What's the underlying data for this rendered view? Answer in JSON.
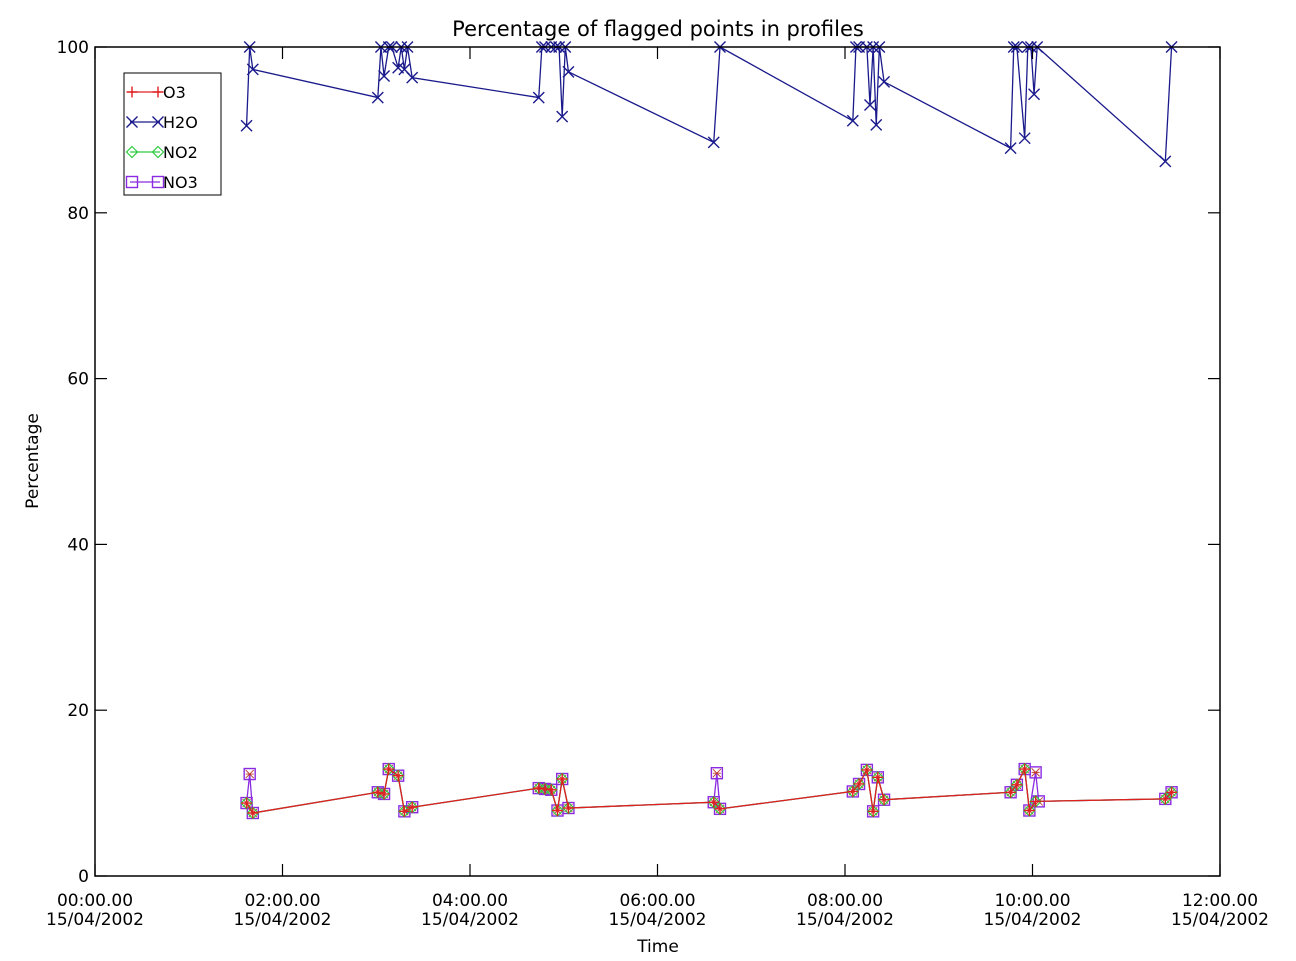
{
  "chart_data": {
    "type": "line",
    "title": "Percentage of flagged points in profiles",
    "xlabel": "Time",
    "ylabel": "Percentage",
    "ylim": [
      0,
      100
    ],
    "xlim": [
      "2002-04-15 00:00",
      "2002-04-15 12:00"
    ],
    "xticks": [
      {
        "time": "00:00.00",
        "date": "15/04/2002"
      },
      {
        "time": "02:00.00",
        "date": "15/04/2002"
      },
      {
        "time": "04:00.00",
        "date": "15/04/2002"
      },
      {
        "time": "06:00.00",
        "date": "15/04/2002"
      },
      {
        "time": "08:00.00",
        "date": "15/04/2002"
      },
      {
        "time": "10:00.00",
        "date": "15/04/2002"
      },
      {
        "time": "12:00.00",
        "date": "15/04/2002"
      }
    ],
    "yticks": [
      "0",
      "20",
      "40",
      "60",
      "80",
      "100"
    ],
    "ytick_values": [
      0,
      20,
      40,
      60,
      80,
      100
    ],
    "legend_position": "top-left",
    "grid": false,
    "series": [
      {
        "name": "O3",
        "color": "#e02020",
        "marker": "plus",
        "x": [
          "2002-04-15 01:37",
          "2002-04-15 01:41",
          "2002-04-15 03:01",
          "2002-04-15 03:05",
          "2002-04-15 03:08",
          "2002-04-15 03:14",
          "2002-04-15 03:18",
          "2002-04-15 03:23",
          "2002-04-15 04:44",
          "2002-04-15 04:48",
          "2002-04-15 04:52",
          "2002-04-15 04:56",
          "2002-04-15 04:59",
          "2002-04-15 05:03",
          "2002-04-15 06:36",
          "2002-04-15 06:40",
          "2002-04-15 08:05",
          "2002-04-15 08:09",
          "2002-04-15 08:14",
          "2002-04-15 08:18",
          "2002-04-15 08:21",
          "2002-04-15 08:25",
          "2002-04-15 09:46",
          "2002-04-15 09:50",
          "2002-04-15 09:55",
          "2002-04-15 09:58",
          "2002-04-15 10:02",
          "2002-04-15 11:25",
          "2002-04-15 11:29"
        ],
        "values": [
          8.8,
          7.6,
          10.1,
          9.9,
          12.9,
          12.1,
          7.8,
          8.3,
          10.6,
          10.5,
          10.4,
          7.9,
          11.7,
          8.2,
          8.9,
          8.1,
          10.2,
          11.1,
          12.8,
          7.8,
          11.9,
          9.2,
          10.1,
          11.0,
          12.9,
          7.9,
          9.0,
          9.3,
          10.1
        ]
      },
      {
        "name": "H2O",
        "color": "#1a1a8c",
        "marker": "cross",
        "x": [
          "2002-04-15 01:37",
          "2002-04-15 01:39",
          "2002-04-15 01:41",
          "2002-04-15 03:01",
          "2002-04-15 03:03",
          "2002-04-15 03:05",
          "2002-04-15 03:08",
          "2002-04-15 03:10",
          "2002-04-15 03:14",
          "2002-04-15 03:16",
          "2002-04-15 03:18",
          "2002-04-15 03:20",
          "2002-04-15 03:23",
          "2002-04-15 04:44",
          "2002-04-15 04:46",
          "2002-04-15 04:48",
          "2002-04-15 04:52",
          "2002-04-15 04:55",
          "2002-04-15 04:57",
          "2002-04-15 04:59",
          "2002-04-15 05:01",
          "2002-04-15 05:03",
          "2002-04-15 06:36",
          "2002-04-15 06:40",
          "2002-04-15 08:05",
          "2002-04-15 08:07",
          "2002-04-15 08:09",
          "2002-04-15 08:14",
          "2002-04-15 08:16",
          "2002-04-15 08:18",
          "2002-04-15 08:20",
          "2002-04-15 08:22",
          "2002-04-15 08:25",
          "2002-04-15 09:46",
          "2002-04-15 09:48",
          "2002-04-15 09:50",
          "2002-04-15 09:55",
          "2002-04-15 09:57",
          "2002-04-15 09:59",
          "2002-04-15 10:01",
          "2002-04-15 10:03",
          "2002-04-15 11:25",
          "2002-04-15 11:29"
        ],
        "values": [
          90.5,
          100,
          97.3,
          93.9,
          100,
          96.5,
          100,
          100,
          97.5,
          100,
          97.3,
          100,
          96.3,
          93.9,
          100,
          100,
          100,
          100,
          100,
          91.6,
          100,
          97.0,
          88.5,
          100,
          91.1,
          100,
          100,
          100,
          93.0,
          100,
          90.6,
          100,
          95.8,
          87.8,
          100,
          100,
          89.0,
          100,
          100,
          94.3,
          100,
          86.2,
          100
        ]
      },
      {
        "name": "NO2",
        "color": "#2ecc40",
        "marker": "diamond",
        "x": [
          "2002-04-15 01:37",
          "2002-04-15 01:41",
          "2002-04-15 03:01",
          "2002-04-15 03:05",
          "2002-04-15 03:08",
          "2002-04-15 03:14",
          "2002-04-15 03:18",
          "2002-04-15 03:23",
          "2002-04-15 04:44",
          "2002-04-15 04:48",
          "2002-04-15 04:52",
          "2002-04-15 04:56",
          "2002-04-15 04:59",
          "2002-04-15 05:03",
          "2002-04-15 06:36",
          "2002-04-15 06:40",
          "2002-04-15 08:05",
          "2002-04-15 08:09",
          "2002-04-15 08:14",
          "2002-04-15 08:18",
          "2002-04-15 08:21",
          "2002-04-15 08:25",
          "2002-04-15 09:46",
          "2002-04-15 09:50",
          "2002-04-15 09:55",
          "2002-04-15 09:58",
          "2002-04-15 10:02",
          "2002-04-15 11:25",
          "2002-04-15 11:29"
        ],
        "values": [
          8.8,
          7.6,
          10.1,
          9.9,
          12.9,
          12.1,
          7.8,
          8.3,
          10.6,
          10.5,
          10.4,
          7.9,
          11.7,
          8.2,
          8.9,
          8.1,
          10.2,
          11.1,
          12.8,
          7.8,
          11.9,
          9.2,
          10.1,
          11.0,
          12.9,
          7.9,
          9.0,
          9.3,
          10.1
        ]
      },
      {
        "name": "NO3",
        "color": "#8a2be2",
        "marker": "square",
        "x": [
          "2002-04-15 01:37",
          "2002-04-15 01:39",
          "2002-04-15 01:41",
          "2002-04-15 03:01",
          "2002-04-15 03:05",
          "2002-04-15 03:08",
          "2002-04-15 03:14",
          "2002-04-15 03:18",
          "2002-04-15 03:23",
          "2002-04-15 04:44",
          "2002-04-15 04:48",
          "2002-04-15 04:52",
          "2002-04-15 04:56",
          "2002-04-15 04:59",
          "2002-04-15 05:03",
          "2002-04-15 06:36",
          "2002-04-15 06:38",
          "2002-04-15 06:40",
          "2002-04-15 08:05",
          "2002-04-15 08:09",
          "2002-04-15 08:14",
          "2002-04-15 08:18",
          "2002-04-15 08:21",
          "2002-04-15 08:25",
          "2002-04-15 09:46",
          "2002-04-15 09:50",
          "2002-04-15 09:55",
          "2002-04-15 09:58",
          "2002-04-15 10:02",
          "2002-04-15 10:04",
          "2002-04-15 11:25",
          "2002-04-15 11:29"
        ],
        "values": [
          8.8,
          12.3,
          7.6,
          10.1,
          9.9,
          12.9,
          12.1,
          7.8,
          8.3,
          10.6,
          10.5,
          10.4,
          7.9,
          11.7,
          8.2,
          8.9,
          12.4,
          8.1,
          10.2,
          11.1,
          12.8,
          7.8,
          11.9,
          9.2,
          10.1,
          11.0,
          12.9,
          7.9,
          12.5,
          9.0,
          9.3,
          10.1
        ]
      }
    ]
  }
}
